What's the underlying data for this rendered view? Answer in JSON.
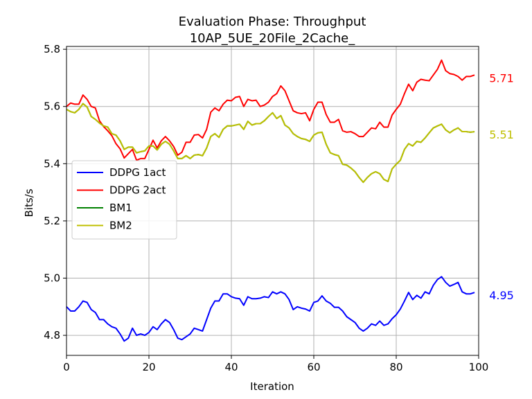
{
  "chart_data": {
    "type": "line",
    "title": "Evaluation Phase: Throughput",
    "subtitle": "10AP_5UE_20File_2Cache_",
    "xlabel": "Iteration",
    "ylabel": "Bits/s",
    "xlim": [
      0,
      100
    ],
    "ylim": [
      4.73,
      5.81
    ],
    "xticks": [
      0,
      20,
      40,
      60,
      80,
      100
    ],
    "yticks": [
      4.8,
      5.0,
      5.2,
      5.4,
      5.6,
      5.8
    ],
    "xtick_labels": [
      "0",
      "20",
      "40",
      "60",
      "80",
      "100"
    ],
    "ytick_labels": [
      "4.8",
      "5.0",
      "5.2",
      "5.4",
      "5.6",
      "5.8"
    ],
    "grid": true,
    "legend_position": "center-left",
    "x": [
      0,
      1,
      2,
      3,
      4,
      5,
      6,
      7,
      8,
      9,
      10,
      11,
      12,
      13,
      14,
      15,
      16,
      17,
      18,
      19,
      20,
      21,
      22,
      23,
      24,
      25,
      26,
      27,
      28,
      29,
      30,
      31,
      32,
      33,
      34,
      35,
      36,
      37,
      38,
      39,
      40,
      41,
      42,
      43,
      44,
      45,
      46,
      47,
      48,
      49,
      50,
      51,
      52,
      53,
      54,
      55,
      56,
      57,
      58,
      59,
      60,
      61,
      62,
      63,
      64,
      65,
      66,
      67,
      68,
      69,
      70,
      71,
      72,
      73,
      74,
      75,
      76,
      77,
      78,
      79,
      80,
      81,
      82,
      83,
      84,
      85,
      86,
      87,
      88,
      89,
      90,
      91,
      92,
      93,
      94,
      95,
      96,
      97,
      98,
      99
    ],
    "series": [
      {
        "name": "DDPG 1act",
        "color": "#0000ff",
        "end_label": "4.95",
        "values": [
          4.9,
          4.885,
          4.885,
          4.9,
          4.92,
          4.915,
          4.89,
          4.88,
          4.855,
          4.855,
          4.84,
          4.83,
          4.825,
          4.805,
          4.78,
          4.79,
          4.825,
          4.8,
          4.805,
          4.8,
          4.81,
          4.83,
          4.82,
          4.84,
          4.855,
          4.845,
          4.82,
          4.79,
          4.785,
          4.795,
          4.805,
          4.825,
          4.82,
          4.815,
          4.855,
          4.895,
          4.92,
          4.92,
          4.945,
          4.945,
          4.935,
          4.93,
          4.928,
          4.905,
          4.935,
          4.928,
          4.928,
          4.93,
          4.935,
          4.932,
          4.952,
          4.945,
          4.952,
          4.945,
          4.925,
          4.89,
          4.9,
          4.895,
          4.892,
          4.885,
          4.915,
          4.92,
          4.938,
          4.92,
          4.912,
          4.898,
          4.898,
          4.885,
          4.865,
          4.855,
          4.845,
          4.825,
          4.815,
          4.825,
          4.84,
          4.835,
          4.85,
          4.835,
          4.84,
          4.858,
          4.872,
          4.892,
          4.92,
          4.95,
          4.925,
          4.94,
          4.93,
          4.952,
          4.945,
          4.975,
          4.995,
          5.005,
          4.985,
          4.972,
          4.978,
          4.985,
          4.952,
          4.945,
          4.945,
          4.95
        ]
      },
      {
        "name": "DDPG 2act",
        "color": "#ff0000",
        "end_label": "5.71",
        "values": [
          5.6,
          5.612,
          5.608,
          5.608,
          5.64,
          5.625,
          5.6,
          5.595,
          5.55,
          5.53,
          5.515,
          5.498,
          5.47,
          5.452,
          5.42,
          5.435,
          5.45,
          5.412,
          5.418,
          5.418,
          5.45,
          5.482,
          5.455,
          5.48,
          5.495,
          5.48,
          5.46,
          5.43,
          5.44,
          5.475,
          5.475,
          5.5,
          5.502,
          5.49,
          5.52,
          5.58,
          5.595,
          5.585,
          5.608,
          5.622,
          5.62,
          5.632,
          5.635,
          5.6,
          5.625,
          5.62,
          5.622,
          5.6,
          5.605,
          5.615,
          5.635,
          5.645,
          5.672,
          5.655,
          5.62,
          5.585,
          5.578,
          5.575,
          5.578,
          5.55,
          5.59,
          5.615,
          5.615,
          5.572,
          5.545,
          5.545,
          5.555,
          5.515,
          5.51,
          5.512,
          5.505,
          5.495,
          5.495,
          5.51,
          5.525,
          5.522,
          5.545,
          5.528,
          5.528,
          5.57,
          5.59,
          5.608,
          5.645,
          5.678,
          5.655,
          5.685,
          5.695,
          5.692,
          5.69,
          5.71,
          5.73,
          5.762,
          5.725,
          5.715,
          5.712,
          5.705,
          5.692,
          5.705,
          5.705,
          5.71
        ]
      },
      {
        "name": "BM1",
        "color": "#008000",
        "end_label": "",
        "values": [
          5.59,
          5.582,
          5.578,
          5.59,
          5.61,
          5.598,
          5.565,
          5.555,
          5.542,
          5.532,
          5.528,
          5.505,
          5.5,
          5.48,
          5.45,
          5.458,
          5.458,
          5.438,
          5.442,
          5.445,
          5.462,
          5.462,
          5.448,
          5.468,
          5.478,
          5.468,
          5.445,
          5.418,
          5.418,
          5.428,
          5.418,
          5.43,
          5.432,
          5.428,
          5.455,
          5.495,
          5.505,
          5.492,
          5.52,
          5.532,
          5.532,
          5.535,
          5.538,
          5.52,
          5.548,
          5.535,
          5.54,
          5.54,
          5.55,
          5.565,
          5.578,
          5.558,
          5.568,
          5.535,
          5.525,
          5.505,
          5.495,
          5.488,
          5.485,
          5.478,
          5.5,
          5.508,
          5.51,
          5.468,
          5.438,
          5.432,
          5.428,
          5.398,
          5.395,
          5.385,
          5.372,
          5.352,
          5.335,
          5.352,
          5.365,
          5.372,
          5.365,
          5.345,
          5.338,
          5.382,
          5.398,
          5.412,
          5.45,
          5.47,
          5.462,
          5.478,
          5.475,
          5.49,
          5.508,
          5.525,
          5.532,
          5.538,
          5.518,
          5.508,
          5.518,
          5.525,
          5.512,
          5.512,
          5.51,
          5.512
        ]
      },
      {
        "name": "BM2",
        "color": "#bfbf00",
        "end_label": "5.51",
        "values": [
          5.59,
          5.582,
          5.578,
          5.59,
          5.61,
          5.598,
          5.565,
          5.555,
          5.542,
          5.532,
          5.528,
          5.505,
          5.5,
          5.48,
          5.45,
          5.458,
          5.458,
          5.438,
          5.442,
          5.445,
          5.462,
          5.462,
          5.448,
          5.468,
          5.478,
          5.468,
          5.445,
          5.418,
          5.418,
          5.428,
          5.418,
          5.43,
          5.432,
          5.428,
          5.455,
          5.495,
          5.505,
          5.492,
          5.52,
          5.532,
          5.532,
          5.535,
          5.538,
          5.52,
          5.548,
          5.535,
          5.54,
          5.54,
          5.55,
          5.565,
          5.578,
          5.558,
          5.568,
          5.535,
          5.525,
          5.505,
          5.495,
          5.488,
          5.485,
          5.478,
          5.5,
          5.508,
          5.51,
          5.468,
          5.438,
          5.432,
          5.428,
          5.398,
          5.395,
          5.385,
          5.372,
          5.352,
          5.335,
          5.352,
          5.365,
          5.372,
          5.365,
          5.345,
          5.338,
          5.382,
          5.398,
          5.412,
          5.45,
          5.47,
          5.462,
          5.478,
          5.475,
          5.49,
          5.508,
          5.525,
          5.532,
          5.538,
          5.518,
          5.508,
          5.518,
          5.525,
          5.512,
          5.512,
          5.51,
          5.512
        ]
      }
    ]
  }
}
